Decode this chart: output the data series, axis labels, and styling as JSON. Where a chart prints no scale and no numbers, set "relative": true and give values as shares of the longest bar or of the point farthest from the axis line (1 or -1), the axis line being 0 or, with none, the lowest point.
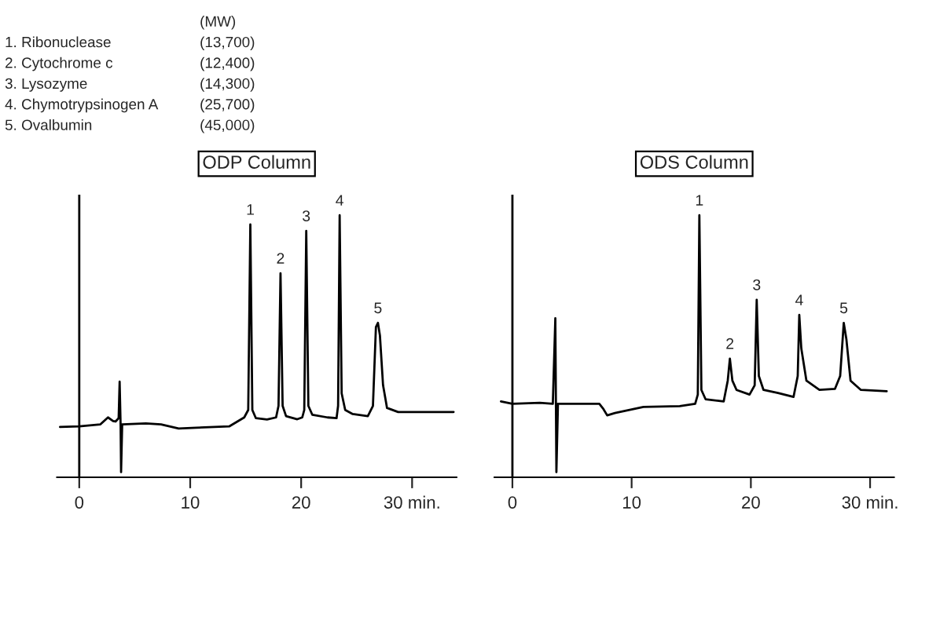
{
  "chart_data": [
    {
      "type": "line",
      "title": "ODP Column",
      "relative": true,
      "xlim": [
        -2,
        34
      ],
      "xticks": [
        0,
        10,
        20,
        {
          "value": 30,
          "label": "30 min."
        }
      ],
      "tick_labels": "x",
      "grid": false,
      "legend": false,
      "marker": "none",
      "line_style": "solid",
      "ref_lines": [
        {
          "axis": "x",
          "value": 0,
          "color": "#000000"
        }
      ],
      "series": [
        {
          "color": "#000000",
          "x": [
            -1.73,
            0,
            1.91,
            2.59,
            3.05,
            3.27,
            3.55,
            3.64,
            3.73,
            3.77,
            3.87,
            6.0,
            7.37,
            8.96,
            10.55,
            13.51,
            14.87,
            15.23,
            15.42,
            15.6,
            15.92,
            16.92,
            17.74,
            17.96,
            18.14,
            18.33,
            18.64,
            19.65,
            20.1,
            20.28,
            20.46,
            20.65,
            21.01,
            22.37,
            23.19,
            23.33,
            23.47,
            23.65,
            23.97,
            24.65,
            26.01,
            26.47,
            26.74,
            26.92,
            27.1,
            27.38,
            27.74,
            28.74,
            33.74
          ],
          "values": [
            0.176,
            0.178,
            0.186,
            0.213,
            0.199,
            0.197,
            0.21,
            0.352,
            0.178,
            0.0,
            0.186,
            0.19,
            0.186,
            0.17,
            0.173,
            0.178,
            0.213,
            0.242,
            0.964,
            0.242,
            0.21,
            0.205,
            0.213,
            0.258,
            0.774,
            0.258,
            0.218,
            0.206,
            0.213,
            0.242,
            0.939,
            0.258,
            0.223,
            0.213,
            0.21,
            0.258,
            1.0,
            0.307,
            0.242,
            0.226,
            0.218,
            0.258,
            0.565,
            0.581,
            0.532,
            0.339,
            0.25,
            0.234,
            0.234
          ]
        }
      ],
      "annotations": [
        "(MW)",
        "1. Ribonuclease  (13,700)",
        "2. Cytochrome c  (12,400)",
        "3. Lysozyme  (14,300)",
        "4. Chymotrypsinogen A  (25,700)",
        "5. Ovalbumin  (45,000)",
        {
          "text": "1",
          "x": 15.42,
          "y": 0.964
        },
        {
          "text": "2",
          "x": 18.14,
          "y": 0.774
        },
        {
          "text": "3",
          "x": 20.46,
          "y": 0.939
        },
        {
          "text": "4",
          "x": 23.47,
          "y": 1.0
        },
        {
          "text": "5",
          "x": 26.92,
          "y": 0.581
        }
      ]
    },
    {
      "type": "line",
      "title": "ODS Column",
      "relative": true,
      "xlim": [
        -1.5,
        32
      ],
      "xticks": [
        0,
        10,
        20,
        {
          "value": 30,
          "label": "30 min."
        }
      ],
      "tick_labels": "x",
      "grid": false,
      "legend": false,
      "marker": "none",
      "line_style": "solid",
      "ref_lines": [
        {
          "axis": "x",
          "value": 0,
          "color": "#000000"
        }
      ],
      "series": [
        {
          "color": "#000000",
          "x": [
            -0.96,
            0,
            2.3,
            3.39,
            3.6,
            3.69,
            3.82,
            7.29,
            7.6,
            7.95,
            8.6,
            10.99,
            14.03,
            15.33,
            15.55,
            15.68,
            15.85,
            16.2,
            17.72,
            18.06,
            18.24,
            18.45,
            18.8,
            19.89,
            20.32,
            20.49,
            20.67,
            21.06,
            22.28,
            23.58,
            23.93,
            24.06,
            24.23,
            24.66,
            25.75,
            27.05,
            27.49,
            27.79,
            28.01,
            28.36,
            29.23,
            31.39
          ],
          "values": [
            0.275,
            0.266,
            0.27,
            0.266,
            0.599,
            0.0,
            0.266,
            0.266,
            0.248,
            0.221,
            0.23,
            0.254,
            0.257,
            0.266,
            0.302,
            1.0,
            0.32,
            0.284,
            0.275,
            0.356,
            0.442,
            0.356,
            0.32,
            0.302,
            0.338,
            0.671,
            0.374,
            0.32,
            0.308,
            0.293,
            0.374,
            0.612,
            0.482,
            0.356,
            0.32,
            0.324,
            0.374,
            0.581,
            0.518,
            0.356,
            0.32,
            0.315
          ]
        }
      ],
      "annotations": [
        {
          "text": "1",
          "x": 15.68,
          "y": 1.0
        },
        {
          "text": "2",
          "x": 18.24,
          "y": 0.442
        },
        {
          "text": "3",
          "x": 20.49,
          "y": 0.671
        },
        {
          "text": "4",
          "x": 24.06,
          "y": 0.612
        },
        {
          "text": "5",
          "x": 27.79,
          "y": 0.581
        }
      ]
    }
  ]
}
